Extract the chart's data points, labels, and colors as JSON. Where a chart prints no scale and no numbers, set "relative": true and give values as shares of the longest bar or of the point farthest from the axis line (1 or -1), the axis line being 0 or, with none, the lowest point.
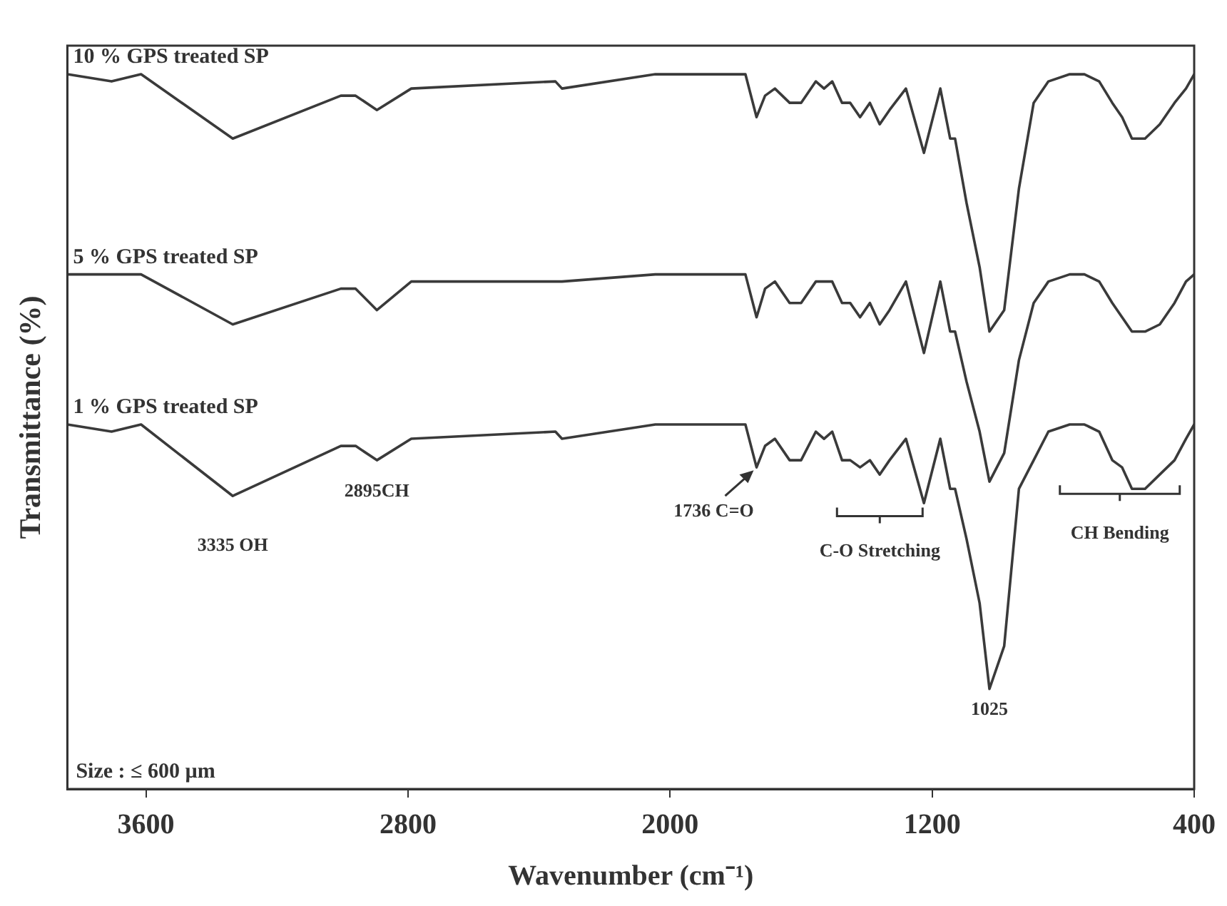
{
  "chart_data": {
    "type": "line",
    "relative": true,
    "xlabel": "Wavenumber (cm⁻¹)",
    "ylabel": "Transmittance (%)",
    "xlim": [
      3840,
      400
    ],
    "xticks": [
      3600,
      2800,
      2000,
      1200,
      400
    ],
    "grid": false,
    "legend": false,
    "x": [
      3840,
      3705,
      3615,
      3335,
      3005,
      2960,
      2895,
      2790,
      2350,
      2330,
      2045,
      1770,
      1736,
      1710,
      1680,
      1635,
      1600,
      1555,
      1530,
      1505,
      1475,
      1450,
      1420,
      1390,
      1360,
      1330,
      1280,
      1225,
      1175,
      1145,
      1130,
      1095,
      1055,
      1025,
      980,
      935,
      890,
      845,
      780,
      735,
      690,
      650,
      620,
      590,
      550,
      505,
      460,
      425,
      400
    ],
    "series": [
      {
        "name": "10 % GPS treated SP",
        "color": "#3a3a3a",
        "values": [
          1.0,
          0.99,
          1.0,
          0.91,
          0.97,
          0.97,
          0.95,
          0.98,
          0.99,
          0.98,
          1.0,
          1.0,
          0.94,
          0.97,
          0.98,
          0.96,
          0.96,
          0.99,
          0.98,
          0.99,
          0.96,
          0.96,
          0.94,
          0.96,
          0.93,
          0.95,
          0.98,
          0.89,
          0.98,
          0.91,
          0.91,
          0.82,
          0.73,
          0.64,
          0.67,
          0.84,
          0.96,
          0.99,
          1.0,
          1.0,
          0.99,
          0.96,
          0.94,
          0.91,
          0.91,
          0.93,
          0.96,
          0.98,
          1.0
        ]
      },
      {
        "name": "5 % GPS treated SP",
        "color": "#3a3a3a",
        "values": [
          0.72,
          0.72,
          0.72,
          0.65,
          0.7,
          0.7,
          0.67,
          0.71,
          0.71,
          0.71,
          0.72,
          0.72,
          0.66,
          0.7,
          0.71,
          0.68,
          0.68,
          0.71,
          0.71,
          0.71,
          0.68,
          0.68,
          0.66,
          0.68,
          0.65,
          0.67,
          0.71,
          0.61,
          0.71,
          0.64,
          0.64,
          0.57,
          0.5,
          0.43,
          0.47,
          0.6,
          0.68,
          0.71,
          0.72,
          0.72,
          0.71,
          0.68,
          0.66,
          0.64,
          0.64,
          0.65,
          0.68,
          0.71,
          0.72
        ]
      },
      {
        "name": "1 % GPS treated SP",
        "color": "#3a3a3a",
        "values": [
          0.51,
          0.5,
          0.51,
          0.41,
          0.48,
          0.48,
          0.46,
          0.49,
          0.5,
          0.49,
          0.51,
          0.51,
          0.45,
          0.48,
          0.49,
          0.46,
          0.46,
          0.5,
          0.49,
          0.5,
          0.46,
          0.46,
          0.45,
          0.46,
          0.44,
          0.46,
          0.49,
          0.4,
          0.49,
          0.42,
          0.42,
          0.35,
          0.26,
          0.14,
          0.2,
          0.42,
          0.46,
          0.5,
          0.51,
          0.51,
          0.5,
          0.46,
          0.45,
          0.42,
          0.42,
          0.44,
          0.46,
          0.49,
          0.51
        ]
      }
    ],
    "annotations": [
      {
        "text": "3335 OH",
        "x": 3335,
        "y": 0.41
      },
      {
        "text": "2895CH",
        "x": 2895,
        "y": 0.46
      },
      {
        "text": "1736 C=O",
        "x": 1736,
        "y": 0.45
      },
      "C-O Stretching",
      "CH Bending",
      {
        "text": "1025",
        "x": 1025,
        "y": 0.14
      },
      "Size : ≤ 600 µm"
    ]
  }
}
